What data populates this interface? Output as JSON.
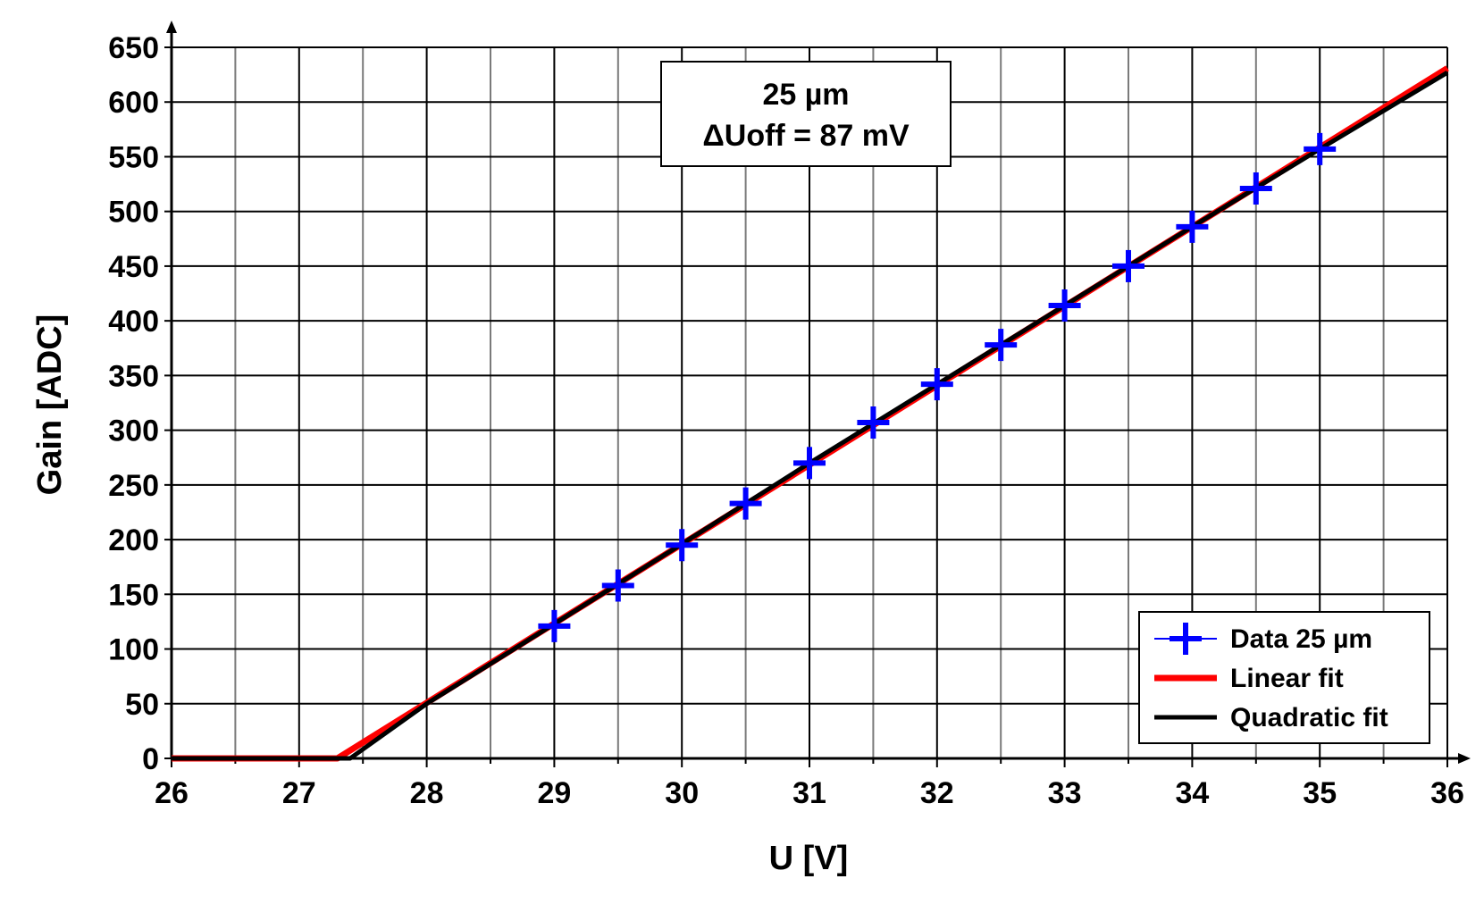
{
  "chart_data": {
    "type": "line",
    "title": "",
    "xlabel": "U [V]",
    "ylabel": "Gain [ADC]",
    "xlim": [
      26,
      36
    ],
    "ylim": [
      0,
      650
    ],
    "x_ticks": [
      26,
      27,
      28,
      29,
      30,
      31,
      32,
      33,
      34,
      35,
      36
    ],
    "y_ticks": [
      0,
      50,
      100,
      150,
      200,
      250,
      300,
      350,
      400,
      450,
      500,
      550,
      600,
      650
    ],
    "x_minor_step": 0.5,
    "grid": true,
    "legend_position": "bottom-right",
    "annotation": {
      "line1": "25 µm",
      "line2": "ΔUoff = 87 mV"
    },
    "series": [
      {
        "name": "Data 25 µm",
        "kind": "scatter",
        "marker": "plus",
        "color": "#0000ff",
        "x": [
          29.0,
          29.5,
          30.0,
          30.5,
          31.0,
          31.5,
          32.0,
          32.5,
          33.0,
          33.5,
          34.0,
          34.5,
          35.0
        ],
        "y": [
          121,
          158,
          195,
          233,
          270,
          307,
          342,
          378,
          414,
          450,
          486,
          521,
          557
        ]
      },
      {
        "name": "Linear fit",
        "kind": "line",
        "color": "#ff0000",
        "x": [
          26,
          27.3,
          36
        ],
        "y": [
          0,
          0,
          631
        ]
      },
      {
        "name": "Quadratic fit",
        "kind": "line",
        "color": "#000000",
        "x": [
          26,
          27.4,
          28,
          29,
          30,
          31,
          32,
          33,
          34,
          35,
          36
        ],
        "y": [
          0,
          0,
          50,
          123,
          196,
          270,
          342,
          414,
          486,
          557,
          627
        ]
      }
    ]
  }
}
